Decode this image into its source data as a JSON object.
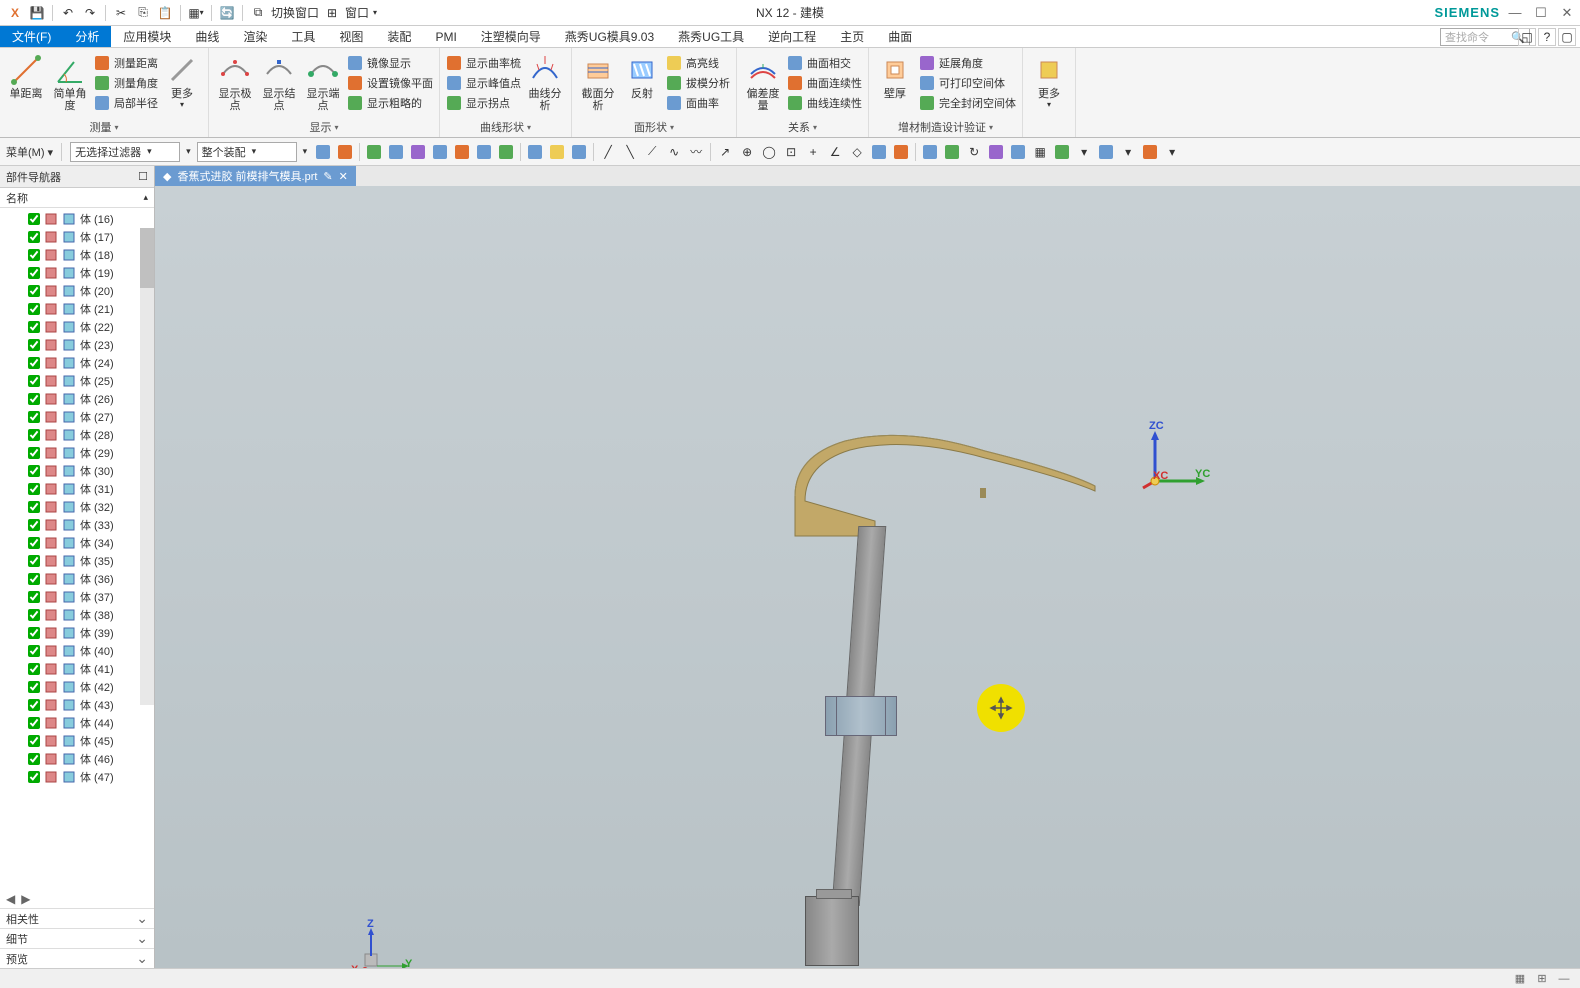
{
  "app": {
    "title": "NX 12 - 建模",
    "brand": "SIEMENS"
  },
  "qat": {
    "switch_window": "切换窗口",
    "window": "窗口"
  },
  "tabs": {
    "file": "文件(F)",
    "items": [
      "分析",
      "应用模块",
      "曲线",
      "渲染",
      "工具",
      "视图",
      "装配",
      "PMI",
      "注塑模向导",
      "燕秀UG模具9.03",
      "燕秀UG工具",
      "逆向工程",
      "主页",
      "曲面"
    ],
    "active": "分析",
    "search_placeholder": "查找命令"
  },
  "ribbon": {
    "groups": {
      "measure": {
        "label": "测量",
        "big": [
          "单距离",
          "简单角度"
        ],
        "small": [
          "测量距离",
          "测量角度",
          "局部半径"
        ],
        "more": "更多"
      },
      "display": {
        "label": "显示",
        "big": [
          "显示极点",
          "显示结点",
          "显示端点"
        ],
        "small": [
          "镜像显示",
          "设置镜像平面",
          "显示粗略的"
        ]
      },
      "curve_shape": {
        "label": "曲线形状",
        "big": [
          "曲线分析"
        ],
        "small": [
          "显示曲率梳",
          "显示峰值点",
          "显示拐点"
        ]
      },
      "surface_shape": {
        "label": "面形状",
        "big": [
          "截面分析",
          "反射"
        ],
        "small": [
          "高亮线",
          "拔模分析",
          "面曲率"
        ]
      },
      "relation": {
        "label": "关系",
        "big": [
          "偏差度量"
        ],
        "small": [
          "曲面相交",
          "曲面连续性",
          "曲线连续性"
        ]
      },
      "additive": {
        "label": "增材制造设计验证",
        "big": [
          "壁厚"
        ],
        "small": [
          "延展角度",
          "可打印空间体",
          "完全封闭空间体"
        ]
      },
      "more": "更多"
    }
  },
  "filter": {
    "menu_label": "菜单(M)",
    "filter1": "无选择过滤器",
    "filter2": "整个装配"
  },
  "sidebar": {
    "title": "部件导航器",
    "column": "名称",
    "item_prefix": "体",
    "item_start": 16,
    "item_end": 47,
    "panels": [
      "相关性",
      "细节",
      "预览"
    ]
  },
  "file_tab": {
    "name": "香蕉式进胶 前模排气模具.prt"
  },
  "triad": {
    "main": {
      "x": "XC",
      "y": "YC",
      "z": "ZC"
    },
    "small": {
      "x": "X",
      "y": "Y",
      "z": "Z"
    }
  },
  "colors": {
    "accent": "#0078d4",
    "brand": "#009999",
    "canvas_top": "#c8d0d4",
    "canvas_bottom": "#b8c2c6",
    "model_brass": "#c2a868",
    "model_steel": "#9aa0a4",
    "highlight": "#f0e000",
    "axis_x": "#d03030",
    "axis_y": "#30a030",
    "axis_z": "#3050d0"
  }
}
